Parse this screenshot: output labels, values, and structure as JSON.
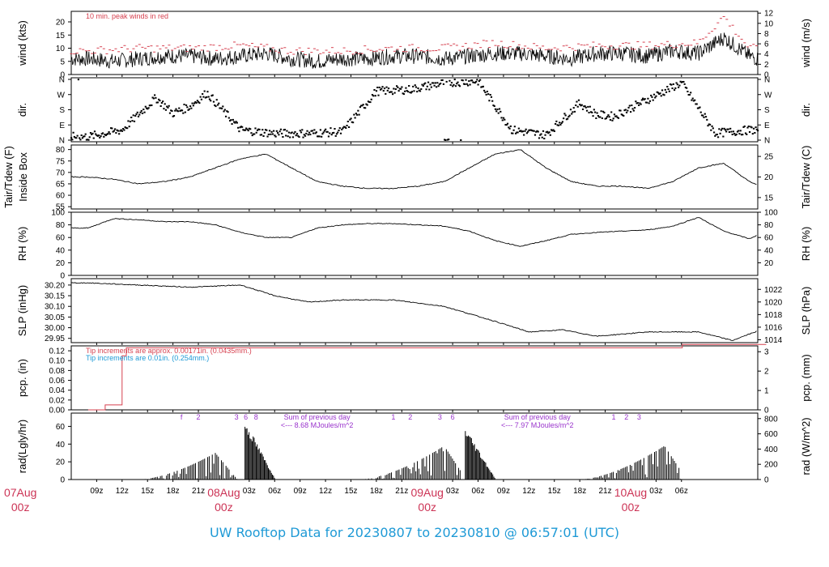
{
  "title": "UW Rooftop Data for 20230807  to  20230810 @ 06:57:01  (UTC)",
  "colors": {
    "peak": "#d6404f",
    "purple": "#9933cc",
    "blue": "#1f9ad6",
    "date": "#cc3355"
  },
  "chart_data": [
    {
      "type": "line",
      "id": "wind",
      "ylabel_left": "wind (kts)",
      "ylabel_right": "wind (m/s)",
      "ylim": [
        0,
        24
      ],
      "yticks_left": [
        "0",
        "5",
        "10",
        "15",
        "20"
      ],
      "yticks_right": [
        "0",
        "2",
        "4",
        "6",
        "8",
        "10",
        "12"
      ],
      "annotation": "10 min. peak winds in red",
      "series": [
        {
          "values_hours": [
            0,
            3,
            6,
            9,
            12,
            15,
            18,
            21,
            24,
            27,
            30,
            33,
            36,
            39,
            42,
            45,
            48,
            51,
            54,
            57,
            60,
            63,
            66,
            69,
            72,
            75,
            78,
            79
          ],
          "mean_kts": [
            6,
            5,
            6,
            7,
            7,
            6,
            7,
            8,
            6,
            5,
            6,
            6,
            7,
            7,
            6,
            7,
            8,
            8,
            7,
            6,
            8,
            8,
            7,
            9,
            8,
            14,
            7,
            6
          ]
        },
        {
          "values_hours": [
            0,
            6,
            12,
            18,
            24,
            30,
            36,
            42,
            48,
            54,
            60,
            66,
            72,
            75,
            78
          ],
          "peak_kts": [
            9,
            10,
            10,
            11,
            9,
            9,
            10,
            10,
            12,
            10,
            11,
            11,
            12,
            22,
            10
          ]
        }
      ]
    },
    {
      "type": "scatter",
      "id": "dir",
      "ylabel_left": "dir.",
      "ylabel_right": "dir.",
      "yticks_left": [
        "N",
        "E",
        "S",
        "W",
        "N"
      ],
      "yticks_right": [
        "N",
        "E",
        "S",
        "W",
        "N"
      ],
      "direction_deg": {
        "hours": [
          0,
          4,
          8,
          10,
          12,
          14,
          18,
          22,
          26,
          30,
          34,
          38,
          42,
          46,
          50,
          54,
          58,
          60,
          62,
          66,
          70,
          74,
          78
        ],
        "values": [
          20,
          60,
          250,
          160,
          200,
          280,
          60,
          40,
          40,
          50,
          290,
          300,
          340,
          350,
          60,
          30,
          220,
          150,
          140,
          240,
          340,
          40,
          60
        ]
      }
    },
    {
      "type": "line",
      "id": "temp",
      "ylabel_left": "Tair/Tdew (F)",
      "ylabel_left_2": "Inside Box",
      "ylabel_right": "Tair/Tdew (C)",
      "ylim": [
        54,
        82
      ],
      "yticks_left": [
        "55",
        "60",
        "65",
        "70",
        "75",
        "80"
      ],
      "yticks_right": [
        "15",
        "20",
        "25"
      ],
      "series": [
        {
          "name": "",
          "hours": [
            0,
            3,
            6,
            9,
            12,
            15,
            18,
            21,
            24,
            27,
            30,
            33,
            36,
            39,
            42,
            45,
            48,
            51,
            54,
            57,
            60,
            63,
            66,
            69,
            72,
            75,
            78,
            80
          ],
          "values": [
            68,
            67,
            65,
            66,
            68,
            72,
            76,
            78,
            72,
            66,
            64,
            63,
            63,
            64,
            66,
            72,
            78,
            80,
            72,
            66,
            64,
            64,
            63,
            66,
            72,
            74,
            66,
            63
          ]
        }
      ]
    },
    {
      "type": "line",
      "id": "rh",
      "ylabel_left": "RH (%)",
      "ylabel_right": "RH (%)",
      "ylim": [
        0,
        100
      ],
      "yticks_left": [
        "0",
        "20",
        "40",
        "60",
        "80",
        "100"
      ],
      "yticks_right": [
        "20",
        "40",
        "60",
        "80",
        "100"
      ],
      "series": [
        {
          "name": "",
          "hours": [
            0,
            3,
            6,
            9,
            12,
            15,
            18,
            21,
            24,
            27,
            30,
            33,
            36,
            39,
            42,
            45,
            48,
            51,
            54,
            57,
            60,
            63,
            66,
            69,
            72,
            75,
            78,
            80
          ],
          "values": [
            75,
            90,
            88,
            85,
            85,
            80,
            68,
            60,
            60,
            75,
            80,
            82,
            82,
            80,
            78,
            70,
            55,
            46,
            55,
            65,
            68,
            70,
            72,
            78,
            92,
            70,
            58,
            70
          ]
        }
      ]
    },
    {
      "type": "line",
      "id": "slp",
      "ylabel_left": "SLP (inHg)",
      "ylabel_right": "SLP (hPa)",
      "ylim": [
        29.93,
        30.23
      ],
      "yticks_left": [
        "29.95",
        "30.00",
        "30.05",
        "30.10",
        "30.15",
        "30.20"
      ],
      "yticks_right": [
        "1014",
        "1016",
        "1018",
        "1020",
        "1022"
      ],
      "series": [
        {
          "name": "",
          "hours": [
            0,
            6,
            12,
            18,
            22,
            26,
            30,
            36,
            42,
            48,
            52,
            56,
            60,
            66,
            72,
            76,
            80
          ],
          "values": [
            30.21,
            30.2,
            30.19,
            30.2,
            30.15,
            30.12,
            30.13,
            30.13,
            30.1,
            30.03,
            29.98,
            29.99,
            29.96,
            29.98,
            29.98,
            29.94,
            30.0
          ]
        }
      ]
    },
    {
      "type": "line",
      "id": "pcp",
      "ylabel_left": "pcp. (in)",
      "ylabel_right": "pcp. (mm)",
      "ylim": [
        0,
        0.13
      ],
      "yticks_left": [
        "0.00",
        "0.02",
        "0.04",
        "0.06",
        "0.08",
        "0.10",
        "0.12"
      ],
      "yticks_right": [
        "0",
        "1",
        "2",
        "3"
      ],
      "note_1": "Tip increments are approx. 0.00171in. (0.0435mm.)",
      "note_2": "Tip increments are 0.01in. (0.254mm.)",
      "series": [
        {
          "name": "",
          "hours": [
            0,
            1,
            2,
            3,
            4,
            4.5,
            70,
            70.1,
            80
          ],
          "values": [
            0,
            0,
            0.01,
            0.01,
            0.11,
            0.126,
            0.126,
            0.133,
            0.133
          ]
        }
      ]
    },
    {
      "type": "bar",
      "id": "rad",
      "ylabel_left": "rad(Lgly/hr)",
      "ylabel_right": "rad (W/m^2)",
      "ylim": [
        0,
        75
      ],
      "yticks_left": [
        "0",
        "20",
        "40",
        "60"
      ],
      "yticks_right": [
        "0",
        "200",
        "400",
        "600",
        "800"
      ],
      "annotations": [
        {
          "text": "Sum of previous day",
          "hour": 27
        },
        {
          "text": "<--- 8.68 MJoules/m^2",
          "hour": 27
        },
        {
          "text": "Sum of previous day",
          "hour": 53
        },
        {
          "text": "<--- 7.97 MJoules/m^2",
          "hour": 53
        }
      ],
      "marks": [
        "f",
        "2",
        "3",
        "6",
        "8",
        "1",
        "2",
        "3",
        "6",
        "1",
        "2",
        "3"
      ],
      "daily_curves": [
        {
          "start": 6,
          "peak": 15,
          "max": 30
        },
        {
          "start": 18.5,
          "peak": 19,
          "max": 68
        },
        {
          "start": 32,
          "peak": 42,
          "max": 38
        },
        {
          "start": 44.5,
          "peak": 45,
          "max": 60
        },
        {
          "start": 58,
          "peak": 68,
          "max": 38
        }
      ]
    }
  ],
  "x_axis": {
    "hours_range": [
      -2,
      79
    ],
    "ticks": [
      {
        "h": 1,
        "label": "09z"
      },
      {
        "h": 4,
        "label": "12z"
      },
      {
        "h": 7,
        "label": "15z"
      },
      {
        "h": 10,
        "label": "18z"
      },
      {
        "h": 13,
        "label": "21z"
      },
      {
        "h": 19,
        "label": "03z"
      },
      {
        "h": 22,
        "label": "06z"
      },
      {
        "h": 25,
        "label": "09z"
      },
      {
        "h": 28,
        "label": "12z"
      },
      {
        "h": 31,
        "label": "15z"
      },
      {
        "h": 34,
        "label": "18z"
      },
      {
        "h": 37,
        "label": "21z"
      },
      {
        "h": 43,
        "label": "03z"
      },
      {
        "h": 46,
        "label": "06z"
      },
      {
        "h": 49,
        "label": "09z"
      },
      {
        "h": 52,
        "label": "12z"
      },
      {
        "h": 55,
        "label": "15z"
      },
      {
        "h": 58,
        "label": "18z"
      },
      {
        "h": 61,
        "label": "21z"
      },
      {
        "h": 67,
        "label": "03z"
      },
      {
        "h": 70,
        "label": "06z"
      }
    ],
    "dates": [
      {
        "h": -8,
        "label": "07Aug",
        "sub": "00z"
      },
      {
        "h": 16,
        "label": "08Aug",
        "sub": "00z"
      },
      {
        "h": 40,
        "label": "09Aug",
        "sub": "00z"
      },
      {
        "h": 64,
        "label": "10Aug",
        "sub": "00z"
      }
    ]
  }
}
